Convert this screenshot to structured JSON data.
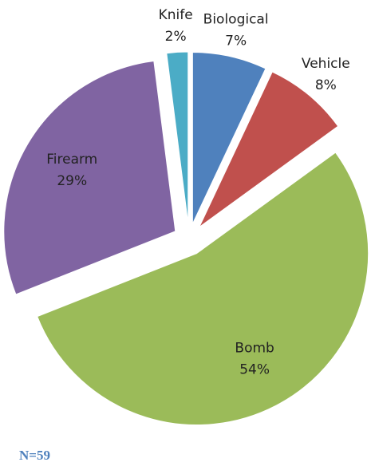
{
  "chart_data": {
    "type": "pie",
    "categories": [
      "Biological",
      "Vehicle",
      "Bomb",
      "Firearm",
      "Knife"
    ],
    "values": [
      7,
      8,
      54,
      29,
      2
    ],
    "value_labels": [
      "7%",
      "8%",
      "54%",
      "29%",
      "2%"
    ],
    "colors": [
      "#4f81bd",
      "#c0504d",
      "#9bbb59",
      "#8064a2",
      "#4bacc6"
    ],
    "annotation": "N=59"
  }
}
